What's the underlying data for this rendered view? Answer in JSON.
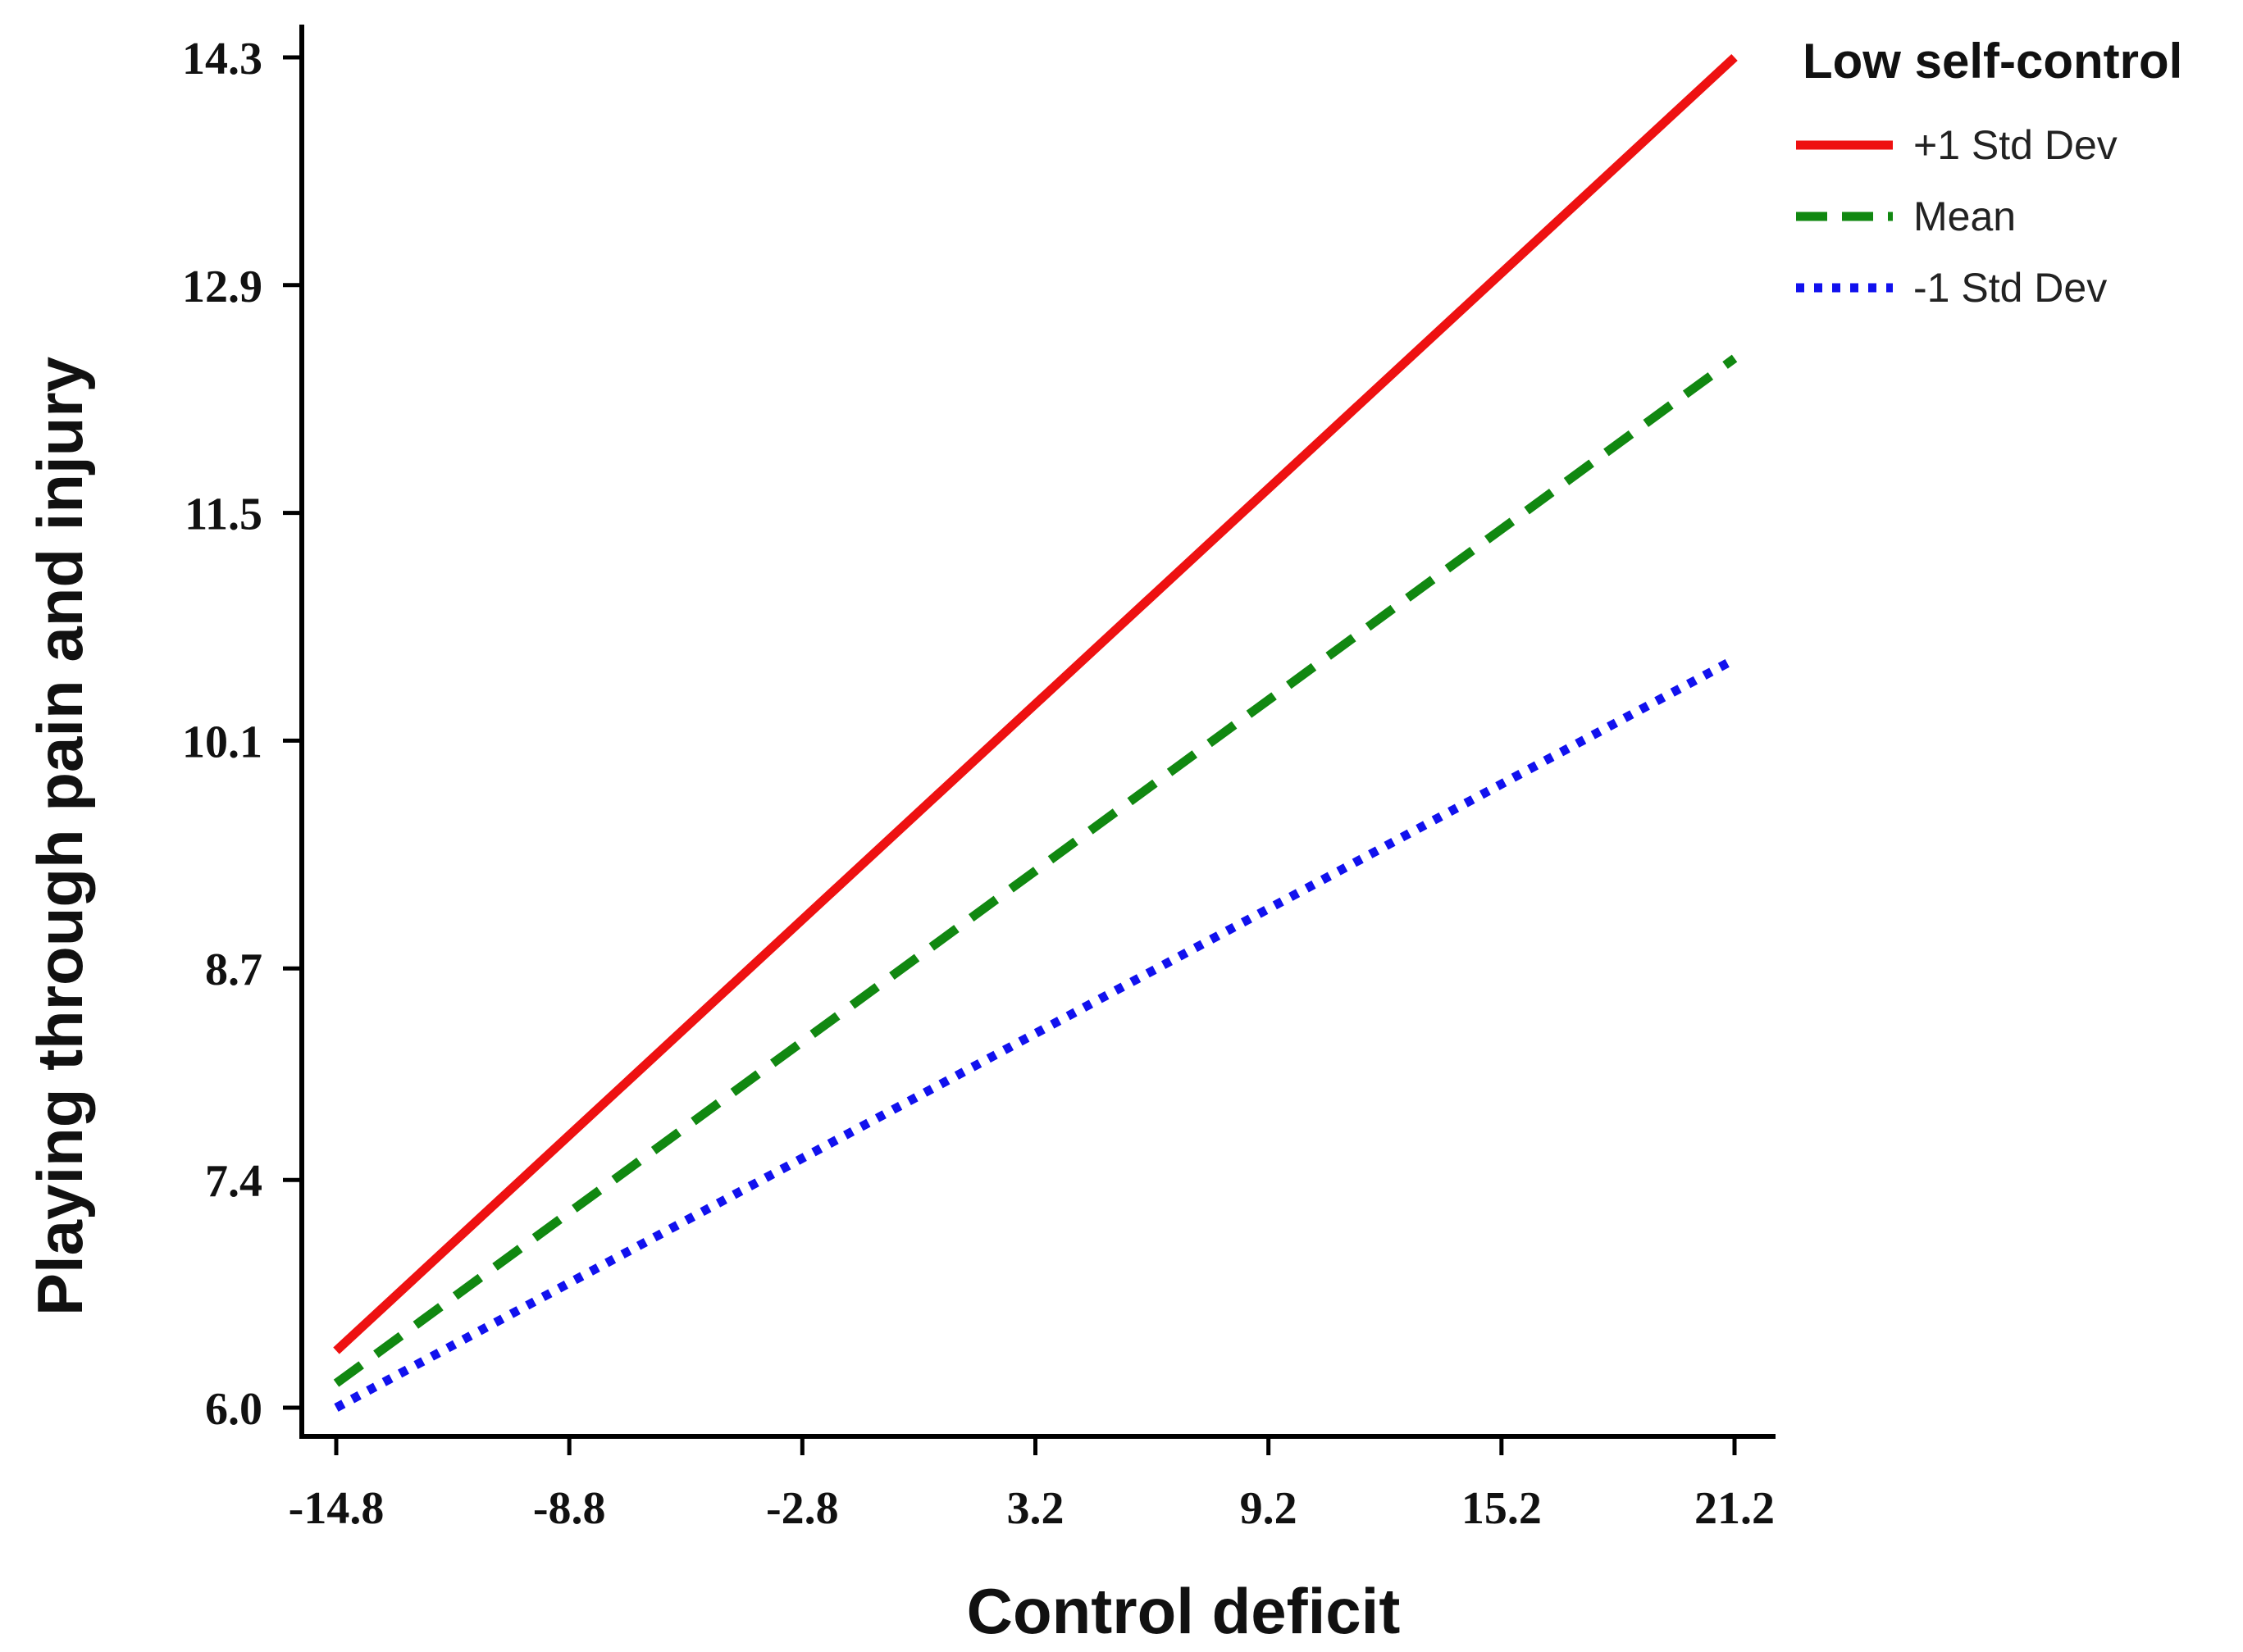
{
  "chart_data": {
    "type": "line",
    "title": "",
    "xlabel": "Control deficit",
    "ylabel": "Playing through pain and injury",
    "x_ticks": [
      "-14.8",
      "-8.8",
      "-2.8",
      "3.2",
      "9.2",
      "15.2",
      "21.2"
    ],
    "y_ticks": [
      "6.0",
      "7.4",
      "8.7",
      "10.1",
      "11.5",
      "12.9",
      "14.3"
    ],
    "xlim": [
      -14.8,
      21.2
    ],
    "ylim": [
      6.0,
      14.3
    ],
    "grid": false,
    "legend": {
      "title": "Low self-control",
      "position": "top-right"
    },
    "series": [
      {
        "name": "+1 Std Dev",
        "style": "solid",
        "color": "#ee1111",
        "x": [
          -14.8,
          21.2
        ],
        "y": [
          6.35,
          14.3
        ]
      },
      {
        "name": "Mean",
        "style": "dashed",
        "color": "#118811",
        "x": [
          -14.8,
          21.2
        ],
        "y": [
          6.15,
          12.45
        ]
      },
      {
        "name": "-1 Std Dev",
        "style": "dotted",
        "color": "#1111ee",
        "x": [
          -14.8,
          21.2
        ],
        "y": [
          6.0,
          10.6
        ]
      }
    ]
  }
}
